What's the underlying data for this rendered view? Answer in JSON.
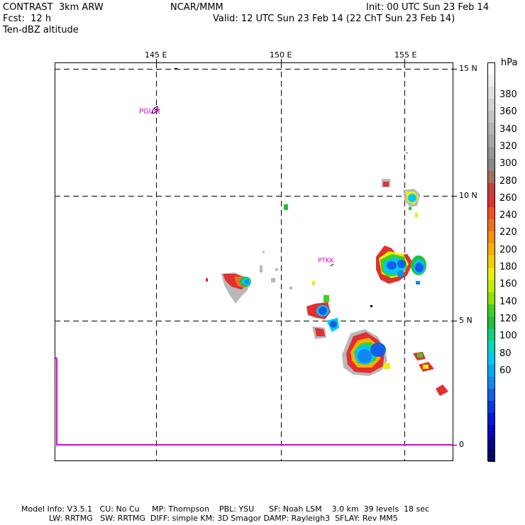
{
  "header": {
    "model": "CONTRAST  3km ARW",
    "org": "NCAR/MMM",
    "init": "Init: 00 UTC Sun 23 Feb 14",
    "fcst": "Fcst:  12 h",
    "valid": "Valid: 12 UTC Sun 23 Feb 14 (22 ChT Sun 23 Feb 14)",
    "field": "Ten-dBZ altitude"
  },
  "axes": {
    "lon_labels": [
      "145 E",
      "150 E",
      "155 E"
    ],
    "lat_labels": [
      "15 N",
      "10 N",
      "5 N",
      "0"
    ]
  },
  "stations": [
    "PGUM",
    "PTKK"
  ],
  "colorbar": {
    "unit": "hPa",
    "labels": [
      "380",
      "360",
      "340",
      "320",
      "300",
      "280",
      "260",
      "240",
      "220",
      "200",
      "180",
      "160",
      "140",
      "120",
      "100",
      "80",
      "60"
    ],
    "colors": [
      "#ffffff",
      "#eeeeee",
      "#e0e0e0",
      "#d2d2d2",
      "#c3c3c3",
      "#b4b4b4",
      "#a6a6a6",
      "#979797",
      "#888888",
      "#a07060",
      "#c04040",
      "#e03030",
      "#f05020",
      "#f07020",
      "#f59010",
      "#f8b000",
      "#f0d000",
      "#e8f000",
      "#c0f000",
      "#90e000",
      "#40d020",
      "#20c040",
      "#10d080",
      "#00d8c0",
      "#00c8f0",
      "#00a8f0",
      "#1088f0",
      "#1060e8",
      "#0838e0",
      "#0018d8",
      "#0008b8",
      "#000890",
      "#000868"
    ],
    "label_colors": {
      "gray": "#888888",
      "red": "#e03030",
      "orange": "#f07020",
      "yellow": "#e8f000",
      "green": "#20c040",
      "cyan": "#00c8f0",
      "blue": "#1060e8",
      "darkblue": "#000868",
      "magenta": "#e000e0"
    }
  },
  "footer": {
    "line1": "Model Info: V3.5.1   CU: No Cu     MP: Thompson    PBL: YSU      SF: Noah LSM    3.0 km  39 levels  18 sec",
    "line2": "LW: RRTMG   SW: RRTMG  DIFF: simple KM: 3D Smagor DAMP: Rayleigh3  SFLAY: Rev MM5"
  }
}
